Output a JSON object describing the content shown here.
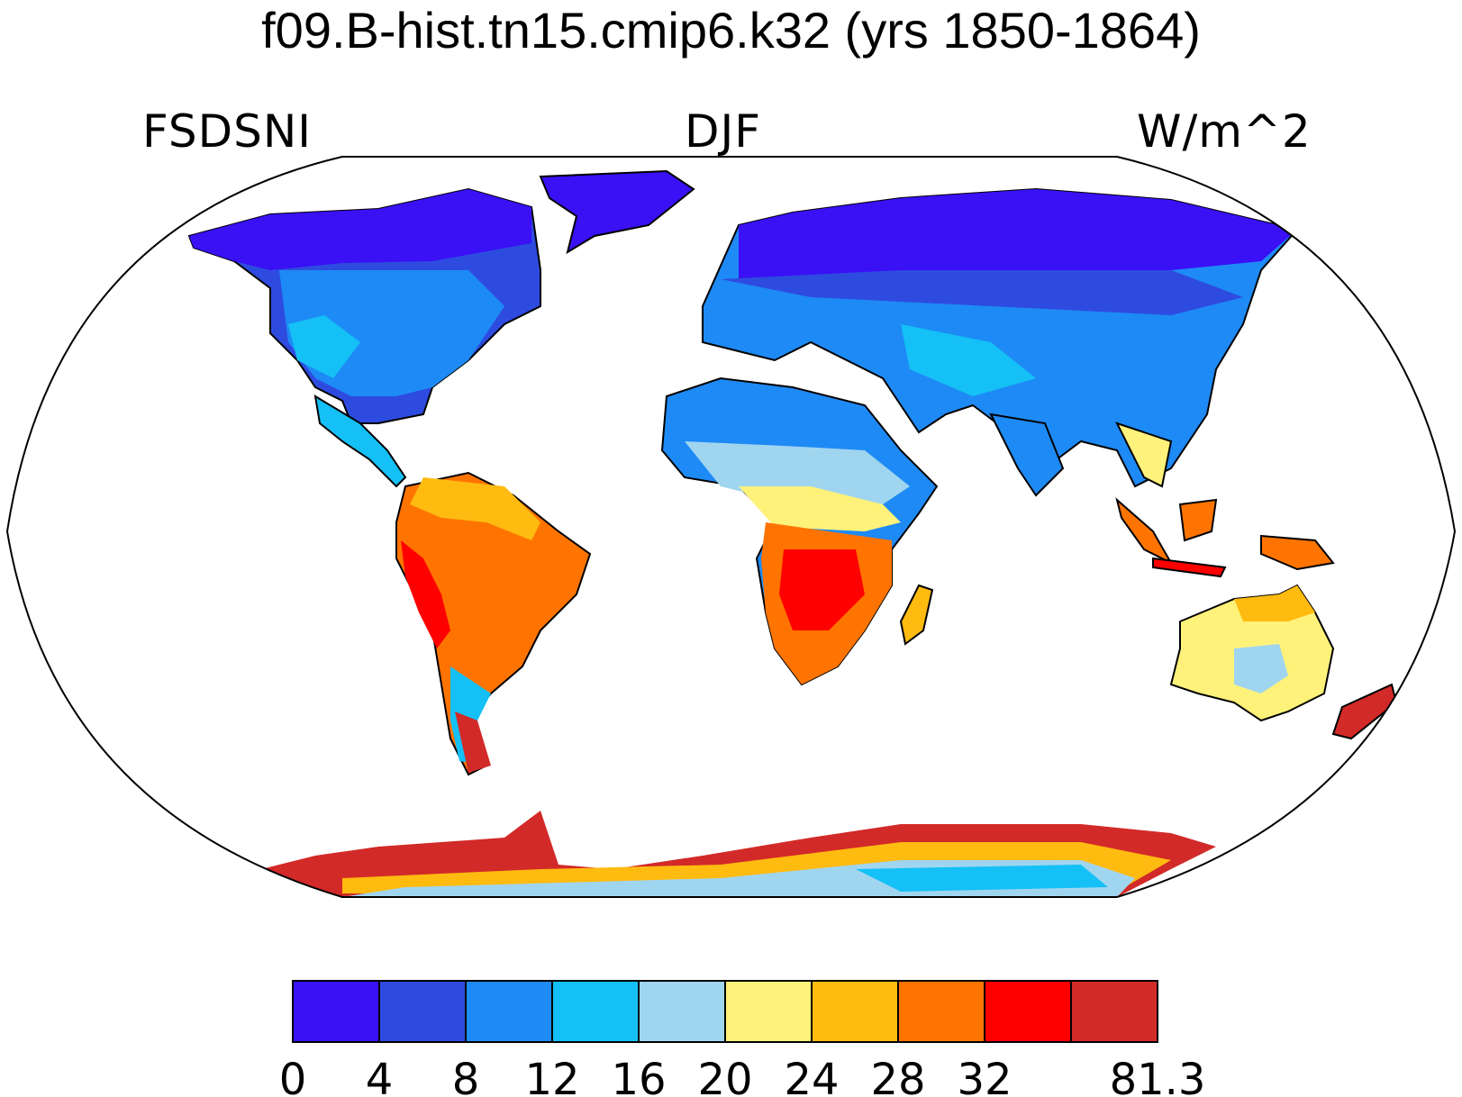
{
  "title": "f09.B-hist.tn15.cmip6.k32 (yrs 1850-1864)",
  "left_label": "FSDSNI",
  "center_label": "DJF",
  "right_label": "W/m^2",
  "colorbar": {
    "colors": [
      "#3a10f5",
      "#2e4be0",
      "#1e8af5",
      "#14c0f5",
      "#a0d5f0",
      "#fff27a",
      "#ffbb10",
      "#ff7400",
      "#ff0000",
      "#d22a28"
    ],
    "labels": [
      "0",
      "4",
      "8",
      "12",
      "16",
      "20",
      "24",
      "28",
      "32",
      "81.3"
    ]
  }
}
